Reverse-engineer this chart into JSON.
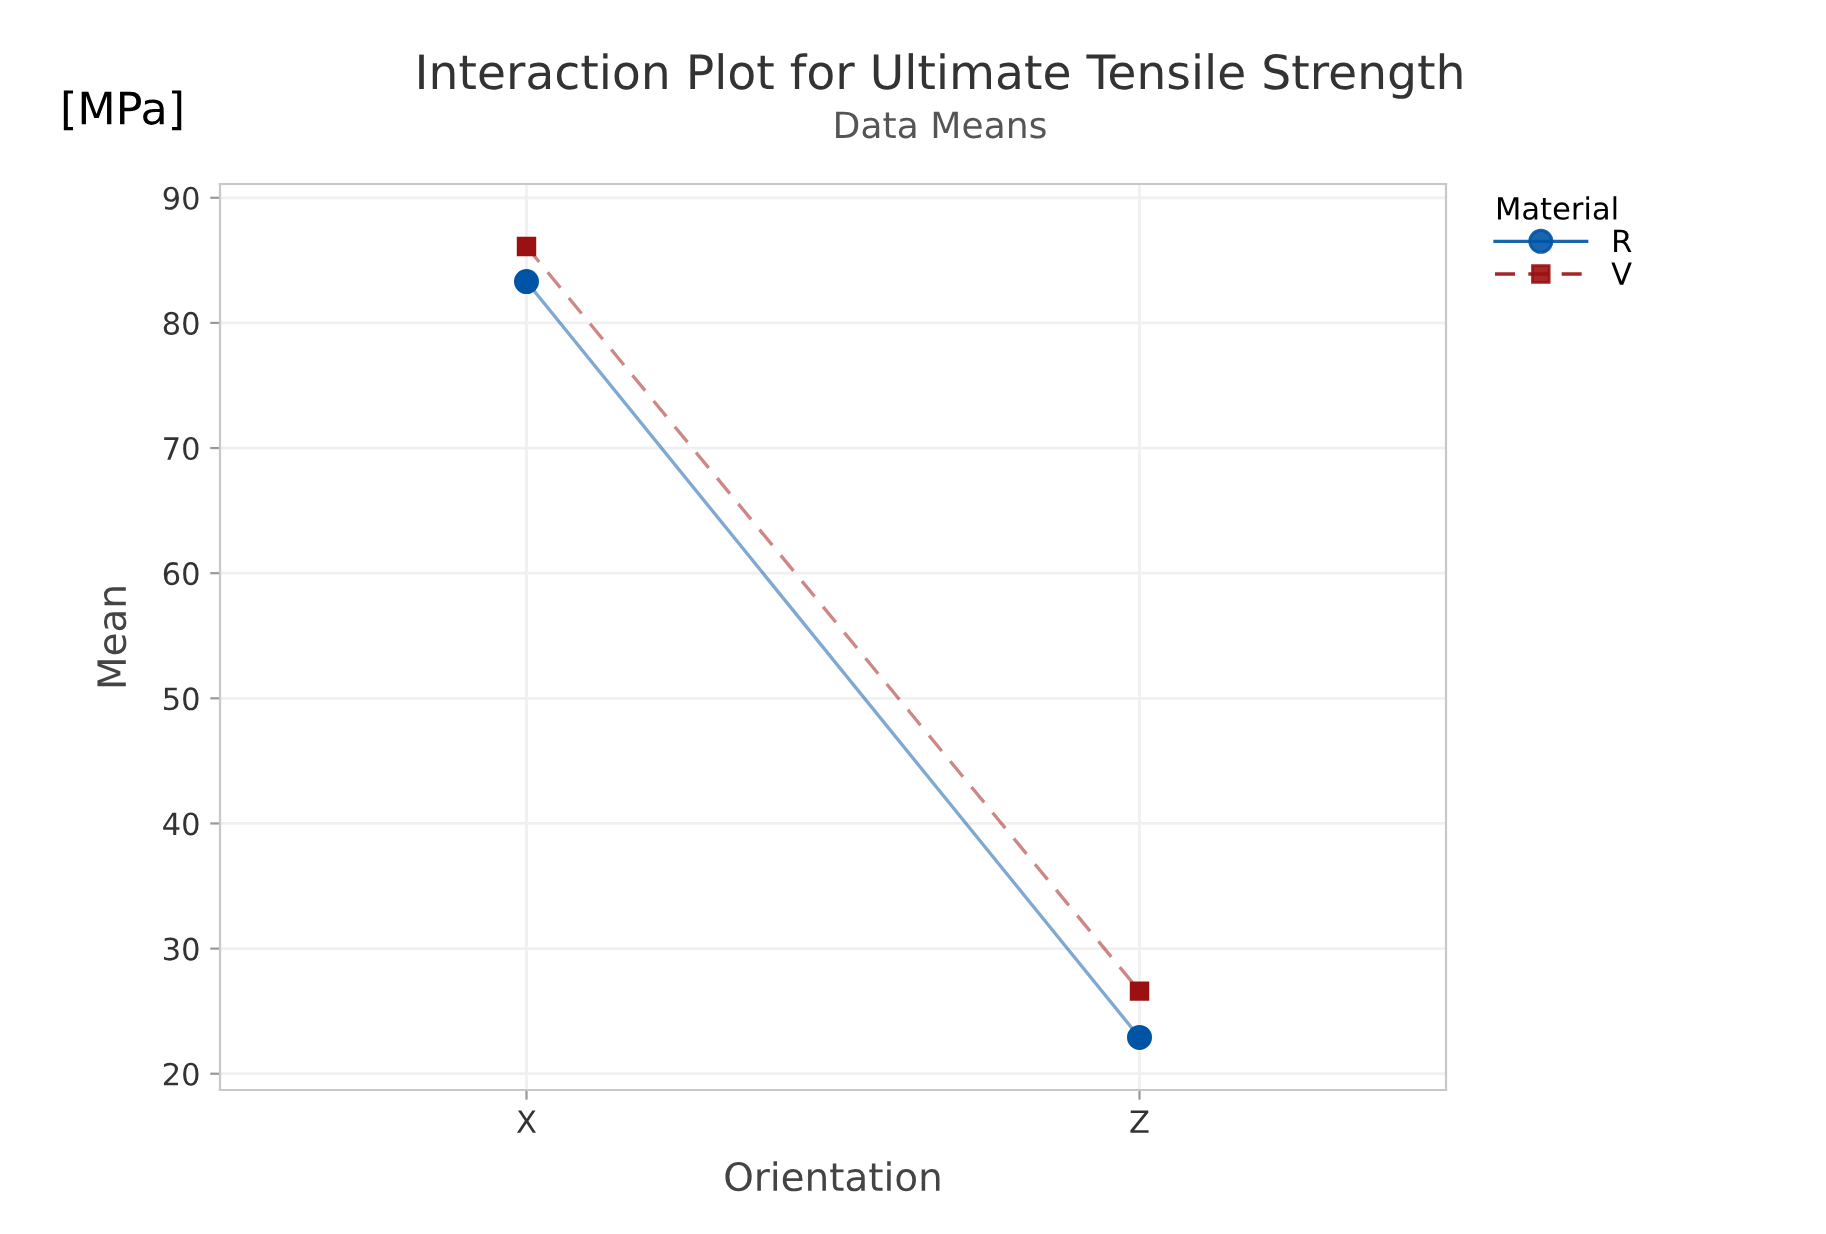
{
  "chart_data": {
    "type": "line",
    "title": "Interaction Plot for Ultimate Tensile Strength",
    "subtitle": "Data Means",
    "xlabel": "Orientation",
    "ylabel": "Mean",
    "legend_title": "Material",
    "annotations": [
      "[MPa]"
    ],
    "categories": [
      "X",
      "Z"
    ],
    "series": [
      {
        "name": "R",
        "color": "#0054a6",
        "values": [
          83.3,
          22.9
        ],
        "marker": "circle",
        "line_style": "solid"
      },
      {
        "name": "V",
        "color": "#9b1010",
        "values": [
          86.1,
          26.6
        ],
        "marker": "square",
        "line_style": "dashed"
      }
    ],
    "ylim": [
      18.7,
      91.1
    ],
    "yticks": [
      20,
      30,
      40,
      50,
      60,
      70,
      80,
      90
    ],
    "grid": true,
    "legend": "top right"
  }
}
